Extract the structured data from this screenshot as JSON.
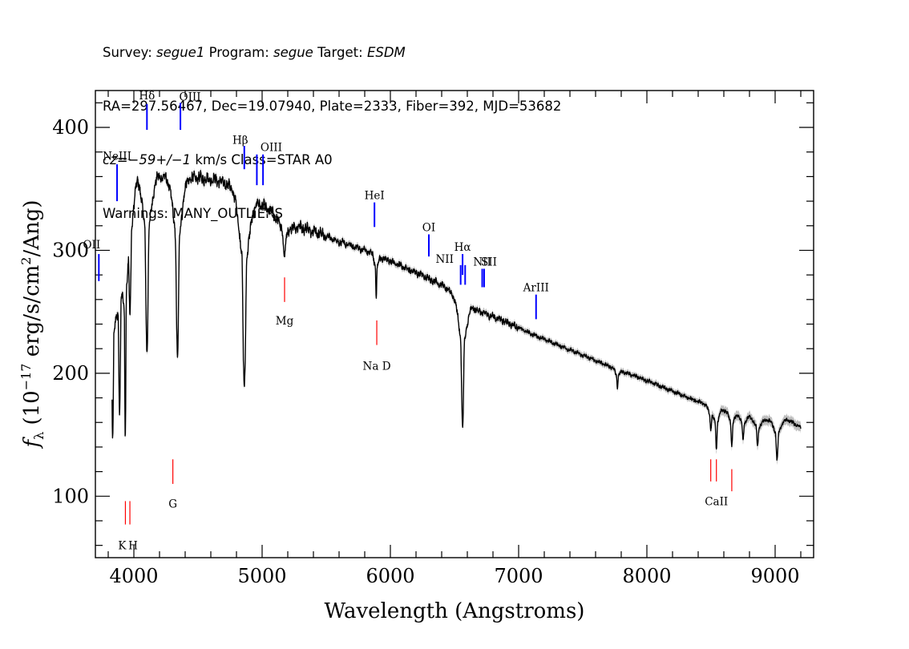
{
  "header": {
    "line1": {
      "survey_label": "Survey: ",
      "survey": "segue1",
      "program_label": " Program: ",
      "program": "segue",
      "target_label": " Target: ",
      "target": "ESDM"
    },
    "line2": "RA=297.56467, Dec=19.07940, Plate=2333, Fiber=392, MJD=53682",
    "line3": {
      "cz": "cz=−59+/−1",
      "rest": " km/s Class=STAR A0"
    },
    "line4": "Warnings: MANY_OUTLIERS"
  },
  "chart_data": {
    "type": "line",
    "xlabel": "Wavelength (Angstroms)",
    "ylabel_prefix": "f",
    "ylabel_sub": "λ",
    "ylabel_main": " (10",
    "ylabel_exp": "−17",
    "ylabel_units": " erg/s/cm",
    "ylabel_exp2": "2",
    "ylabel_tail": "/Ang)",
    "xlim": [
      3700,
      9300
    ],
    "ylim": [
      50,
      430
    ],
    "xticks": [
      4000,
      5000,
      6000,
      7000,
      8000,
      9000
    ],
    "yticks": [
      100,
      200,
      300,
      400
    ],
    "x_minor_step": 200,
    "y_minor_step": 20,
    "continuum": [
      [
        3830,
        262
      ],
      [
        3950,
        338
      ],
      [
        4030,
        362
      ],
      [
        4110,
        362
      ],
      [
        4200,
        360
      ],
      [
        4340,
        358
      ],
      [
        4500,
        359
      ],
      [
        4650,
        357
      ],
      [
        4800,
        350
      ],
      [
        4870,
        345
      ],
      [
        4950,
        340
      ],
      [
        5050,
        333
      ],
      [
        5200,
        322
      ],
      [
        5400,
        316
      ],
      [
        5600,
        307
      ],
      [
        5800,
        300
      ],
      [
        6000,
        291
      ],
      [
        6200,
        282
      ],
      [
        6400,
        272
      ],
      [
        6560,
        258
      ],
      [
        6700,
        250
      ],
      [
        6900,
        242
      ],
      [
        7100,
        232
      ],
      [
        7400,
        219
      ],
      [
        7700,
        206
      ],
      [
        8000,
        194
      ],
      [
        8300,
        181
      ],
      [
        8500,
        173
      ],
      [
        8700,
        167
      ],
      [
        8900,
        162
      ],
      [
        9100,
        162
      ],
      [
        9200,
        156
      ]
    ],
    "absorption": [
      [
        3835,
        115,
        6
      ],
      [
        3889,
        130,
        7
      ],
      [
        3933,
        160,
        5
      ],
      [
        3970,
        92,
        8
      ],
      [
        4102,
        143,
        10
      ],
      [
        4340,
        146,
        10
      ],
      [
        4861,
        158,
        12
      ],
      [
        5175,
        27,
        12
      ],
      [
        5890,
        35,
        4
      ],
      [
        6563,
        102,
        9
      ],
      [
        7770,
        15,
        5
      ],
      [
        8498,
        18,
        6
      ],
      [
        8542,
        33,
        6
      ],
      [
        8662,
        27,
        6
      ],
      [
        8750,
        21,
        6
      ],
      [
        8863,
        22,
        7
      ],
      [
        9015,
        32,
        8
      ]
    ],
    "series": [
      {
        "name": "",
        "color": "#000000",
        "error_color": "#bdbdbd"
      }
    ],
    "lines": [
      {
        "label": "OII",
        "wave": 3727,
        "color": "#0000ff",
        "y1": 275,
        "y2": 297,
        "label_y": 305,
        "label_dx": -9
      },
      {
        "label": "NeIII",
        "wave": 3869,
        "color": "#0000ff",
        "y1": 340,
        "y2": 370,
        "label_y": 377,
        "label_dx": 0
      },
      {
        "label": "Hδ",
        "wave": 4102,
        "color": "#0000ff",
        "y1": 398,
        "y2": 419,
        "label_y": 426,
        "label_dx": 0
      },
      {
        "label": "OIII",
        "wave": 4363,
        "color": "#0000ff",
        "y1": 398,
        "y2": 420,
        "label_y": 425,
        "label_dx": 12
      },
      {
        "label": "Hβ",
        "wave": 4861,
        "color": "#0000ff",
        "y1": 366,
        "y2": 385,
        "label_y": 390,
        "label_dx": -5
      },
      {
        "label": "OIII",
        "wave": 4959,
        "color": "#0000ff",
        "y1": 353,
        "y2": 378,
        "label_y": 384,
        "label_dx": 18
      },
      {
        "label": "",
        "wave": 5007,
        "color": "#0000ff",
        "y1": 353,
        "y2": 378,
        "label_y": 0,
        "label_dx": 0
      },
      {
        "label": "HeI",
        "wave": 5876,
        "color": "#0000ff",
        "y1": 319,
        "y2": 339,
        "label_y": 345,
        "label_dx": 0
      },
      {
        "label": "OI",
        "wave": 6300,
        "color": "#0000ff",
        "y1": 295,
        "y2": 313,
        "label_y": 319,
        "label_dx": 0
      },
      {
        "label": "NII",
        "wave": 6548,
        "color": "#0000ff",
        "y1": 272,
        "y2": 288,
        "label_y": 293,
        "label_dx": -20
      },
      {
        "label": "Hα",
        "wave": 6563,
        "color": "#0000ff",
        "y1": 280,
        "y2": 297,
        "label_y": 303,
        "label_dx": 0
      },
      {
        "label": "",
        "wave": 6583,
        "color": "#0000ff",
        "y1": 272,
        "y2": 288,
        "label_y": 0,
        "label_dx": 0
      },
      {
        "label": "NII",
        "wave": 6716,
        "color": "#0000ff",
        "y1": 270,
        "y2": 285,
        "label_y": 291,
        "label_dx": 0
      },
      {
        "label": "SII",
        "wave": 6731,
        "color": "#0000ff",
        "y1": 270,
        "y2": 285,
        "label_y": 291,
        "label_dx": 6
      },
      {
        "label": "ArIII",
        "wave": 7136,
        "color": "#0000ff",
        "y1": 244,
        "y2": 264,
        "label_y": 270,
        "label_dx": 0
      },
      {
        "label": "K",
        "wave": 3934,
        "color": "#ff0000",
        "y1": 77,
        "y2": 96,
        "label_y": 60,
        "label_dx": -4
      },
      {
        "label": "H",
        "wave": 3969,
        "color": "#ff0000",
        "y1": 77,
        "y2": 96,
        "label_y": 60,
        "label_dx": 4
      },
      {
        "label": "G",
        "wave": 4304,
        "color": "#ff0000",
        "y1": 110,
        "y2": 130,
        "label_y": 94,
        "label_dx": 0
      },
      {
        "label": "Mg",
        "wave": 5175,
        "color": "#ff0000",
        "y1": 258,
        "y2": 278,
        "label_y": 243,
        "label_dx": 0
      },
      {
        "label": "Na D",
        "wave": 5894,
        "color": "#ff0000",
        "y1": 223,
        "y2": 243,
        "label_y": 206,
        "label_dx": 0
      },
      {
        "label": "",
        "wave": 8498,
        "color": "#ff0000",
        "y1": 112,
        "y2": 130,
        "label_y": 0,
        "label_dx": 0
      },
      {
        "label": "CaII",
        "wave": 8542,
        "color": "#ff0000",
        "y1": 112,
        "y2": 130,
        "label_y": 96,
        "label_dx": 0
      },
      {
        "label": "",
        "wave": 8662,
        "color": "#ff0000",
        "y1": 104,
        "y2": 122,
        "label_y": 0,
        "label_dx": 0
      }
    ]
  }
}
